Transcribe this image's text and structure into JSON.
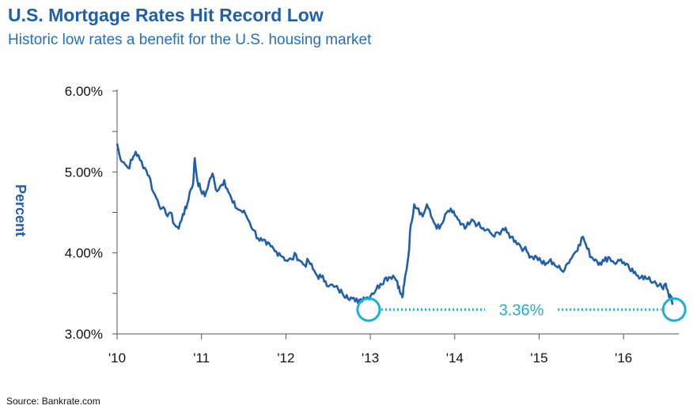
{
  "header": {
    "title": "U.S. Mortgage Rates Hit Record Low",
    "subtitle": "Historic low rates a benefit for the U.S. housing market"
  },
  "footer": {
    "source": "Source: Bankrate.com"
  },
  "colors": {
    "line": "#1f5fad",
    "highlight": "#19b0d8"
  },
  "chart_data": {
    "type": "line",
    "title": "U.S. Mortgage Rates Hit Record Low",
    "subtitle": "Historic low rates a benefit for the U.S. housing market",
    "xlabel": "",
    "ylabel": "Percent",
    "ylim": [
      3.0,
      6.0
    ],
    "xlim": [
      2010.0,
      2016.62
    ],
    "y_ticks": [
      "6.00%",
      "5.00%",
      "4.00%",
      "3.00%"
    ],
    "y_tick_values": [
      6.0,
      5.0,
      4.0,
      3.0
    ],
    "x_ticks": [
      "'10",
      "'11",
      "'12",
      "'13",
      "'14",
      "'15",
      "'16"
    ],
    "x_tick_values": [
      2010,
      2011,
      2012,
      2013,
      2014,
      2015,
      2016
    ],
    "grid": false,
    "series": [
      {
        "x": [
          2010.0,
          2010.03,
          2010.08,
          2010.13,
          2010.18,
          2010.22,
          2010.27,
          2010.33,
          2010.38,
          2010.43,
          2010.48,
          2010.53,
          2010.58,
          2010.63,
          2010.68,
          2010.73,
          2010.78,
          2010.82,
          2010.86,
          2010.9,
          2010.92,
          2010.95,
          2010.99,
          2011.04,
          2011.09,
          2011.13,
          2011.17,
          2011.22,
          2011.27,
          2011.32,
          2011.37,
          2011.42,
          2011.47,
          2011.52,
          2011.57,
          2011.62,
          2011.67,
          2011.72,
          2011.77,
          2011.82,
          2011.87,
          2011.92,
          2011.97,
          2012.02,
          2012.07,
          2012.12,
          2012.17,
          2012.22,
          2012.27,
          2012.32,
          2012.37,
          2012.42,
          2012.47,
          2012.52,
          2012.57,
          2012.62,
          2012.67,
          2012.72,
          2012.77,
          2012.82,
          2012.87,
          2012.92,
          2012.97,
          2013.02,
          2013.07,
          2013.12,
          2013.17,
          2013.22,
          2013.27,
          2013.32,
          2013.35,
          2013.38,
          2013.4,
          2013.42,
          2013.45,
          2013.48,
          2013.52,
          2013.57,
          2013.62,
          2013.67,
          2013.72,
          2013.77,
          2013.82,
          2013.87,
          2013.92,
          2013.97,
          2014.02,
          2014.07,
          2014.12,
          2014.17,
          2014.22,
          2014.27,
          2014.32,
          2014.37,
          2014.42,
          2014.47,
          2014.52,
          2014.57,
          2014.62,
          2014.67,
          2014.72,
          2014.77,
          2014.82,
          2014.87,
          2014.92,
          2014.97,
          2015.02,
          2015.07,
          2015.12,
          2015.17,
          2015.22,
          2015.27,
          2015.32,
          2015.37,
          2015.42,
          2015.47,
          2015.52,
          2015.57,
          2015.62,
          2015.67,
          2015.72,
          2015.77,
          2015.82,
          2015.87,
          2015.92,
          2015.97,
          2016.02,
          2016.07,
          2016.12,
          2016.17,
          2016.22,
          2016.27,
          2016.32,
          2016.37,
          2016.42,
          2016.47,
          2016.5,
          2016.53,
          2016.56,
          2016.58
        ],
        "values": [
          5.35,
          5.2,
          5.12,
          5.05,
          5.15,
          5.25,
          5.15,
          5.05,
          4.95,
          4.75,
          4.65,
          4.55,
          4.48,
          4.5,
          4.35,
          4.3,
          4.48,
          4.55,
          4.75,
          4.85,
          5.17,
          4.9,
          4.78,
          4.7,
          4.88,
          4.98,
          4.78,
          4.82,
          4.9,
          4.75,
          4.62,
          4.55,
          4.52,
          4.48,
          4.38,
          4.28,
          4.18,
          4.15,
          4.1,
          4.08,
          4.02,
          4.0,
          3.95,
          3.9,
          3.92,
          3.98,
          3.9,
          3.85,
          3.9,
          3.8,
          3.72,
          3.7,
          3.65,
          3.6,
          3.58,
          3.55,
          3.5,
          3.48,
          3.45,
          3.4,
          3.42,
          3.45,
          3.45,
          3.5,
          3.55,
          3.62,
          3.68,
          3.7,
          3.72,
          3.65,
          3.52,
          3.45,
          3.6,
          3.75,
          3.95,
          4.35,
          4.6,
          4.55,
          4.45,
          4.6,
          4.45,
          4.35,
          4.3,
          4.4,
          4.52,
          4.5,
          4.45,
          4.35,
          4.3,
          4.35,
          4.4,
          4.35,
          4.3,
          4.28,
          4.25,
          4.2,
          4.25,
          4.3,
          4.25,
          4.2,
          4.15,
          4.1,
          4.05,
          4.0,
          3.95,
          3.95,
          3.9,
          3.85,
          3.9,
          3.88,
          3.82,
          3.78,
          3.85,
          3.92,
          4.0,
          4.1,
          4.2,
          4.05,
          3.95,
          3.92,
          3.88,
          3.9,
          3.95,
          3.9,
          3.88,
          3.92,
          3.85,
          3.8,
          3.75,
          3.72,
          3.72,
          3.68,
          3.65,
          3.65,
          3.6,
          3.55,
          3.62,
          3.5,
          3.45,
          3.36
        ]
      }
    ],
    "annotations": [
      {
        "label": "3.36%",
        "from_x": 2012.98,
        "to_x": 2016.6,
        "y": 3.3
      }
    ]
  }
}
